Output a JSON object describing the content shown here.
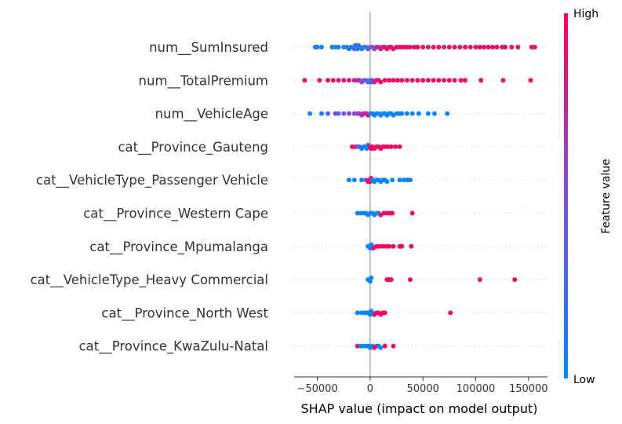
{
  "chart_data": {
    "type": "scatter",
    "subtype": "shap-beeswarm",
    "title": "",
    "xlabel": "SHAP value (impact on model output)",
    "ylabel": "",
    "xlim": [
      -72000,
      168000
    ],
    "xticks": [
      -50000,
      0,
      50000,
      100000,
      150000
    ],
    "xtick_labels": [
      "−50000",
      "0",
      "50000",
      "100000",
      "150000"
    ],
    "colorbar": {
      "label": "Feature value",
      "high": "High",
      "low": "Low",
      "colors": [
        "#008afb",
        "#7d4fe0",
        "#ff0052"
      ]
    },
    "features": [
      {
        "name": "num__SumInsured",
        "points": [
          [
            -52000,
            0.1
          ],
          [
            -50000,
            0.1
          ],
          [
            -46000,
            0.0
          ],
          [
            -36000,
            0.1
          ],
          [
            -33000,
            0.0
          ],
          [
            -30000,
            0.05
          ],
          [
            -25000,
            0.0
          ],
          [
            -22000,
            0.1
          ],
          [
            -20000,
            0.1
          ],
          [
            -18000,
            0.12
          ],
          [
            -16000,
            0.2
          ],
          [
            -15000,
            0.2
          ],
          [
            -14000,
            0.25
          ],
          [
            -13000,
            0.2
          ],
          [
            -12000,
            0.25
          ],
          [
            -11000,
            0.2
          ],
          [
            -10000,
            0.2
          ],
          [
            -8000,
            0.15
          ],
          [
            -6000,
            0.15
          ],
          [
            -4000,
            0.15
          ],
          [
            -2000,
            0.25
          ],
          [
            0,
            0.5
          ],
          [
            2000,
            0.55
          ],
          [
            4000,
            0.6
          ],
          [
            6000,
            0.7
          ],
          [
            8000,
            0.75
          ],
          [
            10000,
            0.8
          ],
          [
            12000,
            0.85
          ],
          [
            14000,
            0.85
          ],
          [
            16000,
            0.9
          ],
          [
            18000,
            0.9
          ],
          [
            20000,
            0.9
          ],
          [
            22000,
            0.92
          ],
          [
            25000,
            0.95
          ],
          [
            28000,
            0.95
          ],
          [
            30000,
            0.95
          ],
          [
            32000,
            0.95
          ],
          [
            35000,
            0.95
          ],
          [
            38000,
            0.95
          ],
          [
            42000,
            0.95
          ],
          [
            45000,
            0.95
          ],
          [
            50000,
            0.95
          ],
          [
            55000,
            0.95
          ],
          [
            60000,
            0.95
          ],
          [
            65000,
            0.95
          ],
          [
            70000,
            0.95
          ],
          [
            75000,
            0.95
          ],
          [
            80000,
            0.95
          ],
          [
            85000,
            0.95
          ],
          [
            90000,
            0.95
          ],
          [
            95000,
            0.95
          ],
          [
            100000,
            0.95
          ],
          [
            104000,
            0.95
          ],
          [
            108000,
            0.95
          ],
          [
            112000,
            0.95
          ],
          [
            116000,
            0.95
          ],
          [
            120000,
            0.95
          ],
          [
            125000,
            0.95
          ],
          [
            128000,
            0.95
          ],
          [
            134000,
            0.95
          ],
          [
            140000,
            0.95
          ],
          [
            153000,
            0.95
          ],
          [
            156000,
            0.95
          ]
        ]
      },
      {
        "name": "num__TotalPremium",
        "points": [
          [
            -62000,
            0.95
          ],
          [
            -48000,
            0.95
          ],
          [
            -40000,
            0.95
          ],
          [
            -35000,
            0.9
          ],
          [
            -30000,
            0.9
          ],
          [
            -25000,
            0.9
          ],
          [
            -20000,
            0.85
          ],
          [
            -15000,
            0.8
          ],
          [
            -12000,
            0.7
          ],
          [
            -10000,
            0.7
          ],
          [
            -8000,
            0.6
          ],
          [
            -6000,
            0.5
          ],
          [
            -4000,
            0.4
          ],
          [
            -2000,
            0.3
          ],
          [
            0,
            0.2
          ],
          [
            1000,
            0.2
          ],
          [
            2000,
            0.6
          ],
          [
            4000,
            0.8
          ],
          [
            6000,
            0.85
          ],
          [
            8000,
            0.9
          ],
          [
            10000,
            0.9
          ],
          [
            14000,
            0.9
          ],
          [
            18000,
            0.92
          ],
          [
            22000,
            0.95
          ],
          [
            26000,
            0.95
          ],
          [
            30000,
            0.95
          ],
          [
            35000,
            0.95
          ],
          [
            40000,
            0.95
          ],
          [
            45000,
            0.95
          ],
          [
            50000,
            0.95
          ],
          [
            55000,
            0.95
          ],
          [
            60000,
            0.95
          ],
          [
            65000,
            0.95
          ],
          [
            70000,
            0.95
          ],
          [
            75000,
            0.95
          ],
          [
            80000,
            0.95
          ],
          [
            86000,
            0.95
          ],
          [
            90000,
            0.95
          ],
          [
            105000,
            0.95
          ],
          [
            126000,
            0.95
          ],
          [
            152000,
            0.95
          ]
        ]
      },
      {
        "name": "num__VehicleAge",
        "points": [
          [
            -57000,
            0.05
          ],
          [
            -46000,
            0.1
          ],
          [
            -40000,
            0.3
          ],
          [
            -33000,
            0.4
          ],
          [
            -30000,
            0.4
          ],
          [
            -25000,
            0.45
          ],
          [
            -20000,
            0.5
          ],
          [
            -15000,
            0.55
          ],
          [
            -12000,
            0.6
          ],
          [
            -10000,
            0.6
          ],
          [
            -8000,
            0.65
          ],
          [
            -6000,
            0.7
          ],
          [
            -4000,
            0.8
          ],
          [
            -2000,
            0.85
          ],
          [
            0,
            0.3
          ],
          [
            2000,
            0.1
          ],
          [
            4000,
            0.05
          ],
          [
            6000,
            0.05
          ],
          [
            8000,
            0.05
          ],
          [
            10000,
            0.05
          ],
          [
            12000,
            0.05
          ],
          [
            14000,
            0.05
          ],
          [
            16000,
            0.05
          ],
          [
            18000,
            0.05
          ],
          [
            20000,
            0.05
          ],
          [
            22000,
            0.05
          ],
          [
            25000,
            0.05
          ],
          [
            28000,
            0.05
          ],
          [
            30000,
            0.05
          ],
          [
            35000,
            0.05
          ],
          [
            40000,
            0.05
          ],
          [
            46000,
            0.05
          ],
          [
            55000,
            0.05
          ],
          [
            61000,
            0.05
          ],
          [
            73000,
            0.05
          ]
        ]
      },
      {
        "name": "cat__Province_Gauteng",
        "points": [
          [
            -17000,
            0.95
          ],
          [
            -14000,
            0.9
          ],
          [
            -12000,
            0.5
          ],
          [
            -10000,
            0.3
          ],
          [
            -8000,
            0.05
          ],
          [
            -6000,
            0.1
          ],
          [
            -4000,
            0.3
          ],
          [
            -3000,
            0.05
          ],
          [
            -2000,
            0.2
          ],
          [
            0,
            0.9
          ],
          [
            1000,
            0.95
          ],
          [
            2000,
            0.95
          ],
          [
            4000,
            0.95
          ],
          [
            6000,
            0.95
          ],
          [
            8000,
            0.95
          ],
          [
            10000,
            0.95
          ],
          [
            12000,
            0.95
          ],
          [
            14000,
            0.95
          ],
          [
            17000,
            0.95
          ],
          [
            20000,
            0.95
          ],
          [
            24000,
            0.95
          ],
          [
            28000,
            0.95
          ]
        ]
      },
      {
        "name": "cat__VehicleType_Passenger Vehicle",
        "points": [
          [
            -20000,
            0.05
          ],
          [
            -15000,
            0.05
          ],
          [
            -8000,
            0.05
          ],
          [
            -4000,
            0.5
          ],
          [
            -2000,
            0.9
          ],
          [
            -1000,
            0.95
          ],
          [
            0,
            0.95
          ],
          [
            1000,
            0.9
          ],
          [
            2000,
            0.05
          ],
          [
            4000,
            0.05
          ],
          [
            6000,
            0.05
          ],
          [
            8000,
            0.05
          ],
          [
            10000,
            0.05
          ],
          [
            12000,
            0.05
          ],
          [
            14000,
            0.05
          ],
          [
            16000,
            0.05
          ],
          [
            21000,
            0.05
          ],
          [
            28000,
            0.05
          ],
          [
            32000,
            0.05
          ],
          [
            35000,
            0.05
          ],
          [
            38000,
            0.05
          ]
        ]
      },
      {
        "name": "cat__Province_Western Cape",
        "points": [
          [
            -12000,
            0.05
          ],
          [
            -9000,
            0.05
          ],
          [
            -6000,
            0.05
          ],
          [
            -4000,
            0.05
          ],
          [
            -2000,
            0.05
          ],
          [
            0,
            0.05
          ],
          [
            2000,
            0.05
          ],
          [
            4000,
            0.05
          ],
          [
            6000,
            0.05
          ],
          [
            8000,
            0.05
          ],
          [
            10000,
            0.95
          ],
          [
            13000,
            0.95
          ],
          [
            16000,
            0.95
          ],
          [
            19000,
            0.95
          ],
          [
            21000,
            0.95
          ],
          [
            40000,
            0.95
          ]
        ]
      },
      {
        "name": "cat__Province_Mpumalanga",
        "points": [
          [
            -2000,
            0.05
          ],
          [
            -1000,
            0.05
          ],
          [
            0,
            0.05
          ],
          [
            1000,
            0.05
          ],
          [
            2000,
            0.05
          ],
          [
            3000,
            0.95
          ],
          [
            6000,
            0.95
          ],
          [
            9000,
            0.95
          ],
          [
            12000,
            0.95
          ],
          [
            15000,
            0.95
          ],
          [
            18000,
            0.95
          ],
          [
            22000,
            0.95
          ],
          [
            28000,
            0.95
          ],
          [
            30000,
            0.95
          ],
          [
            39000,
            0.95
          ]
        ]
      },
      {
        "name": "cat__VehicleType_Heavy Commercial",
        "points": [
          [
            -2000,
            0.05
          ],
          [
            -1000,
            0.05
          ],
          [
            0,
            0.05
          ],
          [
            1000,
            0.05
          ],
          [
            16000,
            0.95
          ],
          [
            18000,
            0.95
          ],
          [
            20000,
            0.95
          ],
          [
            38000,
            0.95
          ],
          [
            104000,
            0.95
          ],
          [
            137000,
            0.95
          ]
        ]
      },
      {
        "name": "cat__Province_North West",
        "points": [
          [
            -12000,
            0.05
          ],
          [
            -8000,
            0.05
          ],
          [
            -5000,
            0.05
          ],
          [
            -3000,
            0.05
          ],
          [
            -1000,
            0.05
          ],
          [
            0,
            0.05
          ],
          [
            1000,
            0.05
          ],
          [
            2000,
            0.05
          ],
          [
            4000,
            0.95
          ],
          [
            6000,
            0.95
          ],
          [
            8000,
            0.95
          ],
          [
            10000,
            0.95
          ],
          [
            12000,
            0.95
          ],
          [
            14000,
            0.95
          ],
          [
            76000,
            0.95
          ]
        ]
      },
      {
        "name": "cat__Province_KwaZulu-Natal",
        "points": [
          [
            -12000,
            0.95
          ],
          [
            -9000,
            0.05
          ],
          [
            -6000,
            0.05
          ],
          [
            -3000,
            0.05
          ],
          [
            -1000,
            0.05
          ],
          [
            0,
            0.05
          ],
          [
            2000,
            0.05
          ],
          [
            4000,
            0.95
          ],
          [
            6000,
            0.95
          ],
          [
            8000,
            0.05
          ],
          [
            10000,
            0.05
          ],
          [
            14000,
            0.95
          ],
          [
            22000,
            0.95
          ]
        ]
      }
    ]
  }
}
